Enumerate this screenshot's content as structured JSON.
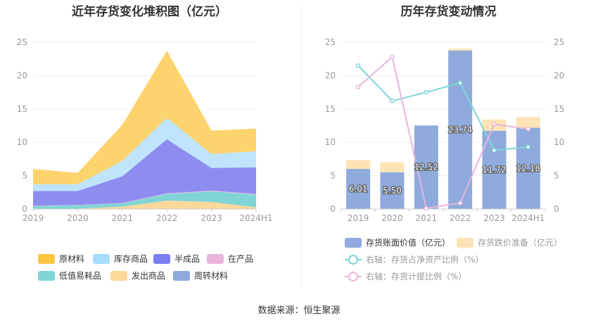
{
  "left_title": "近年存货变化堆积图（亿元）",
  "right_title": "历年存货变动情况",
  "source": "数据来源：恒生聚源",
  "chart_data": [
    {
      "type": "area",
      "title": "近年存货变化堆积图（亿元）",
      "stacked": true,
      "categories": [
        "2019",
        "2020",
        "2021",
        "2022",
        "2023",
        "2024H1"
      ],
      "ylim": [
        0,
        25
      ],
      "yticks": [
        "0",
        "5",
        "10",
        "15",
        "20",
        "25"
      ],
      "series": [
        {
          "name": "周转材料",
          "color": "#8faadc",
          "values": [
            0.05,
            0.05,
            0.05,
            0.05,
            0.05,
            0.05
          ]
        },
        {
          "name": "发出商品",
          "color": "#fdd89b",
          "values": [
            0,
            0,
            0.3,
            1.2,
            1.0,
            0.2
          ]
        },
        {
          "name": "低值易耗品",
          "color": "#7fd5d5",
          "values": [
            0.4,
            0.5,
            0.5,
            1.0,
            1.6,
            1.9
          ]
        },
        {
          "name": "在产品",
          "color": "#e9b5dc",
          "values": [
            0.05,
            0.05,
            0.05,
            0.1,
            0.1,
            0.1
          ]
        },
        {
          "name": "半成品",
          "color": "#8d8df0",
          "values": [
            2.2,
            2.1,
            4.0,
            8.1,
            3.4,
            4.0
          ]
        },
        {
          "name": "库存商品",
          "color": "#bfe4fb",
          "values": [
            1.0,
            1.0,
            2.3,
            3.2,
            2.1,
            2.4
          ]
        },
        {
          "name": "原材料",
          "color": "#fdd36e",
          "values": [
            2.3,
            1.7,
            5.4,
            10.1,
            3.5,
            3.4
          ]
        }
      ],
      "legend": [
        "原材料",
        "库存商品",
        "半成品",
        "在产品",
        "低值易耗品",
        "发出商品",
        "周转材料"
      ],
      "legend_colors": [
        "#fdc640",
        "#a7dcfb",
        "#7b7ef0",
        "#e9b5dc",
        "#7fd5d5",
        "#fdd89b",
        "#8faadc"
      ],
      "legend_position": "bottom"
    },
    {
      "type": "bar",
      "title": "历年存货变动情况",
      "categories": [
        "2019",
        "2020",
        "2021",
        "2022",
        "2023",
        "2024H1"
      ],
      "ylim": [
        0,
        25
      ],
      "yticks": [
        "0",
        "5",
        "10",
        "15",
        "20",
        "25"
      ],
      "right_ylim": [
        0,
        25
      ],
      "right_yticks": [
        "0",
        "5",
        "10",
        "15",
        "20",
        "25"
      ],
      "series": [
        {
          "name": "存货账面价值（亿元）",
          "kind": "bar",
          "color": "#8faadc",
          "values": [
            6.01,
            5.5,
            12.52,
            23.74,
            11.72,
            12.18
          ],
          "labels": [
            "6.01",
            "5.50",
            "12.52",
            "23.74",
            "11.72",
            "12.18"
          ]
        },
        {
          "name": "存货跌价准备（亿元）",
          "kind": "bar",
          "stacked_on": 0,
          "color": "#fde3b6",
          "values": [
            1.3,
            1.5,
            0,
            0.3,
            1.7,
            1.6
          ]
        },
        {
          "name": "右轴：存货占净资产比例（%）",
          "kind": "line",
          "axis": "right",
          "color": "#7fd5d5",
          "values": [
            21.5,
            16.2,
            17.5,
            18.9,
            8.8,
            9.3
          ]
        },
        {
          "name": "右轴：存货计提比例（%）",
          "kind": "line",
          "axis": "right",
          "color": "#e9b5dc",
          "values": [
            18.3,
            22.8,
            0.1,
            0.9,
            12.7,
            12.0
          ]
        }
      ],
      "legend_position": "bottom"
    }
  ]
}
